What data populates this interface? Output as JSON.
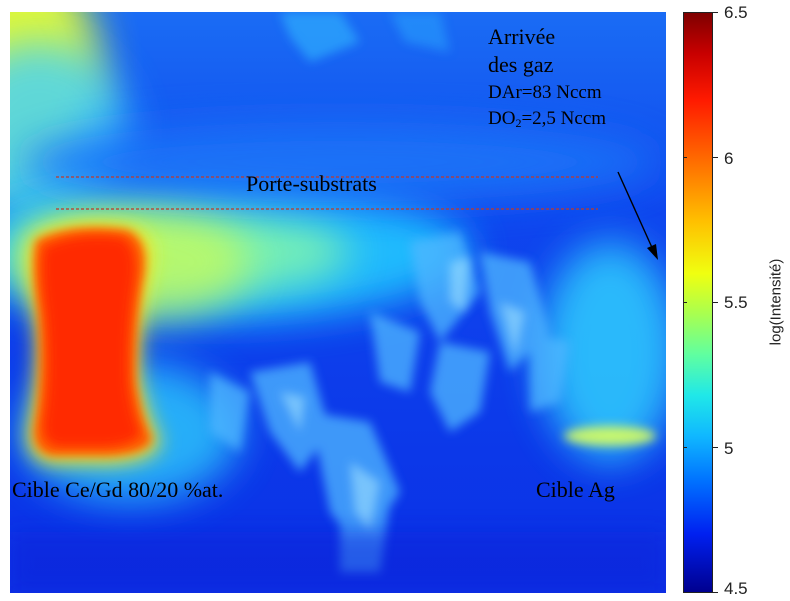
{
  "image": {
    "annotations": {
      "gas_inlet": "Arrivée",
      "gas_inlet_2": "des gaz",
      "dar": "DAr=83 Nccm",
      "do2_prefix": "DO",
      "do2_sub": "2",
      "do2_suffix": "=2,5 Nccm",
      "substrate_holder": "Porte-substrats",
      "target_left": "Cible Ce/Gd 80/20 %at.",
      "target_right": "Cible Ag"
    }
  },
  "colorbar": {
    "title": "log(Intensité)",
    "ticks": [
      "6.5",
      "6",
      "5.5",
      "5",
      "4.5"
    ],
    "min": 4.5,
    "max": 6.5,
    "colormap": "jet"
  },
  "colors": {
    "dashed_line": "#c0392b",
    "hot": "#ff3000",
    "background": "#0a2fe6"
  }
}
